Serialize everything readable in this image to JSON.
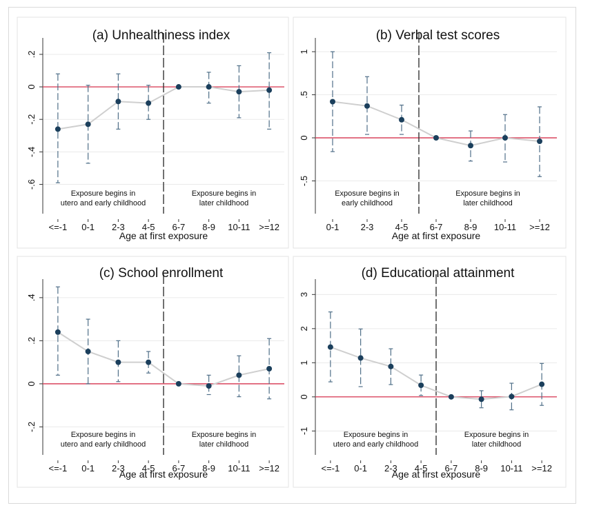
{
  "chart_data": [
    {
      "type": "line",
      "title": "(a) Unhealthiness index",
      "xlabel": "Age at first exposure",
      "ylabel": "",
      "categories": [
        "<=-1",
        "0-1",
        "2-3",
        "4-5",
        "6-7",
        "8-9",
        "10-11",
        ">=12"
      ],
      "y_ticks": [
        0.2,
        0,
        -0.2,
        -0.4,
        -0.6
      ],
      "y_tick_labels": [
        ".2",
        "0",
        "-.2",
        "-.4",
        "-.6"
      ],
      "ylim": [
        -0.78,
        0.28
      ],
      "grid": true,
      "reference_line": 0,
      "divider_after_category": "4-5",
      "series": [
        {
          "values": [
            -0.26,
            -0.23,
            -0.09,
            -0.1,
            0.0,
            0.0,
            -0.03,
            -0.02
          ],
          "ci_low": [
            -0.59,
            -0.47,
            -0.26,
            -0.2,
            0.0,
            -0.1,
            -0.19,
            -0.26
          ],
          "ci_high": [
            0.08,
            0.01,
            0.08,
            0.01,
            0.0,
            0.09,
            0.13,
            0.21
          ]
        }
      ],
      "annotations": {
        "left": [
          "Exposure begins in",
          "utero and early childhood"
        ],
        "right": [
          "Exposure begins in",
          "later childhood"
        ]
      }
    },
    {
      "type": "line",
      "title": "(b) Verbal test scores",
      "xlabel": "Age at first exposure",
      "ylabel": "",
      "categories": [
        "0-1",
        "2-3",
        "4-5",
        "6-7",
        "8-9",
        "10-11",
        ">=12"
      ],
      "y_ticks": [
        1,
        0.5,
        0,
        -0.5
      ],
      "y_tick_labels": [
        "1",
        ".5",
        "0",
        "-.5"
      ],
      "ylim": [
        -0.88,
        1.12
      ],
      "grid": true,
      "reference_line": 0,
      "divider_after_category": "4-5",
      "series": [
        {
          "values": [
            0.42,
            0.37,
            0.21,
            0.0,
            -0.09,
            0.0,
            -0.04
          ],
          "ci_low": [
            -0.16,
            0.04,
            0.04,
            0.0,
            -0.27,
            -0.28,
            -0.45
          ],
          "ci_high": [
            1.0,
            0.71,
            0.38,
            0.0,
            0.08,
            0.27,
            0.36
          ]
        }
      ],
      "annotations": {
        "left": [
          "Exposure begins in",
          "early childhood"
        ],
        "right": [
          "Exposure begins in",
          "later childhood"
        ]
      }
    },
    {
      "type": "line",
      "title": "(c) School enrollment",
      "xlabel": "Age at first exposure",
      "ylabel": "",
      "categories": [
        "<=-1",
        "0-1",
        "2-3",
        "4-5",
        "6-7",
        "8-9",
        "10-11",
        ">=12"
      ],
      "y_ticks": [
        0.4,
        0.2,
        0,
        -0.2
      ],
      "y_tick_labels": [
        ".4",
        ".2",
        "0",
        "-.2"
      ],
      "ylim": [
        -0.33,
        0.47
      ],
      "grid": true,
      "reference_line": 0,
      "divider_after_category": "4-5",
      "series": [
        {
          "values": [
            0.24,
            0.15,
            0.1,
            0.1,
            0.0,
            -0.01,
            0.04,
            0.07
          ],
          "ci_low": [
            0.04,
            0.0,
            0.01,
            0.05,
            0.0,
            -0.05,
            -0.06,
            -0.07
          ],
          "ci_high": [
            0.45,
            0.3,
            0.2,
            0.15,
            0.0,
            0.04,
            0.13,
            0.21
          ]
        }
      ],
      "annotations": {
        "left": [
          "Exposure begins in",
          "utero and early childhood"
        ],
        "right": [
          "Exposure begins in",
          "later childhood"
        ]
      }
    },
    {
      "type": "line",
      "title": "(d) Educational attainment",
      "xlabel": "Age at first exposure",
      "ylabel": "",
      "categories": [
        "<=-1",
        "0-1",
        "2-3",
        "4-5",
        "6-7",
        "8-9",
        "10-11",
        ">=12"
      ],
      "y_ticks": [
        3,
        2,
        1,
        0,
        -1
      ],
      "y_tick_labels": [
        "3",
        "2",
        "1",
        "0",
        "-1"
      ],
      "ylim": [
        -1.7,
        3.35
      ],
      "grid": true,
      "reference_line": 0,
      "divider_after_category": "4-5",
      "series": [
        {
          "values": [
            1.46,
            1.14,
            0.89,
            0.34,
            0.0,
            -0.07,
            0.01,
            0.37
          ],
          "ci_low": [
            0.44,
            0.3,
            0.36,
            0.04,
            0.0,
            -0.32,
            -0.38,
            -0.25
          ],
          "ci_high": [
            2.49,
            1.99,
            1.41,
            0.64,
            0.0,
            0.18,
            0.4,
            0.98
          ]
        }
      ],
      "annotations": {
        "left": [
          "Exposure begins in",
          "utero and early childhood"
        ],
        "right": [
          "Exposure begins in",
          "later childhood"
        ]
      }
    }
  ],
  "colors": {
    "reference_line": "#d9435c",
    "marker": "#1b3f5c",
    "connector": "#cfcfcf",
    "ci": "#4f6f88",
    "grid": "#eaeaea",
    "divider": "#333333"
  }
}
